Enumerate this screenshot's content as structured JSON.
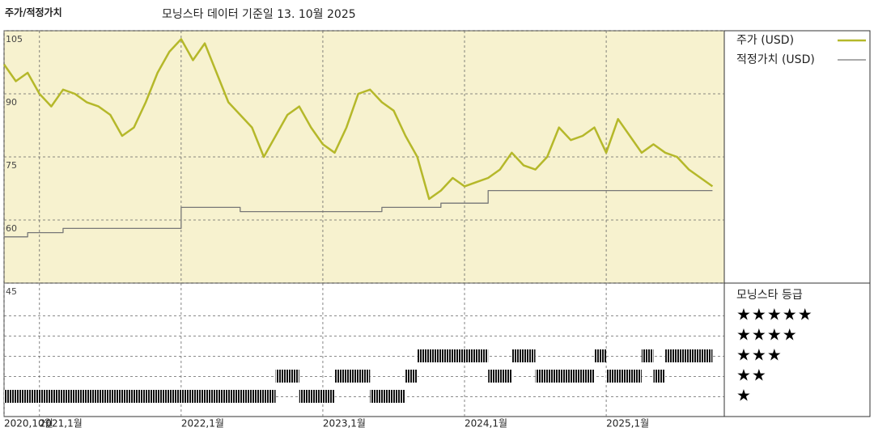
{
  "chart_data": {
    "type": "line",
    "title": "주가/적정가치",
    "subtitle": "모닝스타 데이터 기준일 13. 10월 2025",
    "xlim": [
      "2020-10",
      "2025-11"
    ],
    "xticks": [
      {
        "value": "2020-10",
        "label": "2020,10월"
      },
      {
        "value": "2021-01",
        "label": "2021,1월"
      },
      {
        "value": "2022-01",
        "label": "2022,1월"
      },
      {
        "value": "2023-01",
        "label": "2023,1월"
      },
      {
        "value": "2024-01",
        "label": "2024,1월"
      },
      {
        "value": "2025-01",
        "label": "2025,1월"
      }
    ],
    "ylim": [
      45,
      105
    ],
    "yticks": [
      45,
      60,
      75,
      90,
      105
    ],
    "grid": true,
    "series": [
      {
        "name": "주가 (USD)",
        "color": "#b5b82a",
        "step": false,
        "x": [
          "2020-10",
          "2020-11",
          "2020-12",
          "2021-01",
          "2021-02",
          "2021-03",
          "2021-04",
          "2021-05",
          "2021-06",
          "2021-07",
          "2021-08",
          "2021-09",
          "2021-10",
          "2021-11",
          "2021-12",
          "2022-01",
          "2022-02",
          "2022-03",
          "2022-04",
          "2022-05",
          "2022-06",
          "2022-07",
          "2022-08",
          "2022-09",
          "2022-10",
          "2022-11",
          "2022-12",
          "2023-01",
          "2023-02",
          "2023-03",
          "2023-04",
          "2023-05",
          "2023-06",
          "2023-07",
          "2023-08",
          "2023-09",
          "2023-10",
          "2023-11",
          "2023-12",
          "2024-01",
          "2024-02",
          "2024-03",
          "2024-04",
          "2024-05",
          "2024-06",
          "2024-07",
          "2024-08",
          "2024-09",
          "2024-10",
          "2024-11",
          "2024-12",
          "2025-01",
          "2025-02",
          "2025-03",
          "2025-04",
          "2025-05",
          "2025-06",
          "2025-07",
          "2025-08",
          "2025-09",
          "2025-10"
        ],
        "values": [
          97,
          93,
          95,
          90,
          87,
          91,
          90,
          88,
          87,
          85,
          80,
          82,
          88,
          95,
          100,
          103,
          98,
          102,
          95,
          88,
          85,
          82,
          75,
          80,
          85,
          87,
          82,
          78,
          76,
          82,
          90,
          91,
          88,
          86,
          80,
          75,
          65,
          67,
          70,
          68,
          69,
          70,
          72,
          76,
          73,
          72,
          75,
          82,
          79,
          80,
          82,
          76,
          84,
          80,
          76,
          78,
          76,
          75,
          72,
          70,
          68
        ]
      },
      {
        "name": "적정가치 (USD)",
        "color": "#777777",
        "step": true,
        "x": [
          "2020-10",
          "2020-12",
          "2021-03",
          "2022-01",
          "2022-06",
          "2023-06",
          "2023-11",
          "2024-03",
          "2025-10"
        ],
        "values": [
          56,
          57,
          58,
          63,
          62,
          63,
          64,
          67,
          67
        ]
      }
    ],
    "ratings": {
      "title": "모닝스타 등급",
      "labels": [
        "★★★★★",
        "★★★★",
        "★★★",
        "★★",
        "★"
      ],
      "periods": [
        {
          "start": "2020-10",
          "end": "2022-09",
          "stars": 1
        },
        {
          "start": "2022-09",
          "end": "2022-11",
          "stars": 2
        },
        {
          "start": "2022-11",
          "end": "2023-02",
          "stars": 1
        },
        {
          "start": "2023-02",
          "end": "2023-05",
          "stars": 2
        },
        {
          "start": "2023-05",
          "end": "2023-08",
          "stars": 1
        },
        {
          "start": "2023-08",
          "end": "2023-09",
          "stars": 2
        },
        {
          "start": "2023-09",
          "end": "2024-03",
          "stars": 3
        },
        {
          "start": "2024-03",
          "end": "2024-05",
          "stars": 2
        },
        {
          "start": "2024-05",
          "end": "2024-07",
          "stars": 3
        },
        {
          "start": "2024-07",
          "end": "2024-12",
          "stars": 2
        },
        {
          "start": "2024-12",
          "end": "2025-01",
          "stars": 3
        },
        {
          "start": "2025-01",
          "end": "2025-04",
          "stars": 2
        },
        {
          "start": "2025-04",
          "end": "2025-05",
          "stars": 3
        },
        {
          "start": "2025-05",
          "end": "2025-06",
          "stars": 2
        },
        {
          "start": "2025-06",
          "end": "2025-10",
          "stars": 3
        }
      ]
    }
  }
}
